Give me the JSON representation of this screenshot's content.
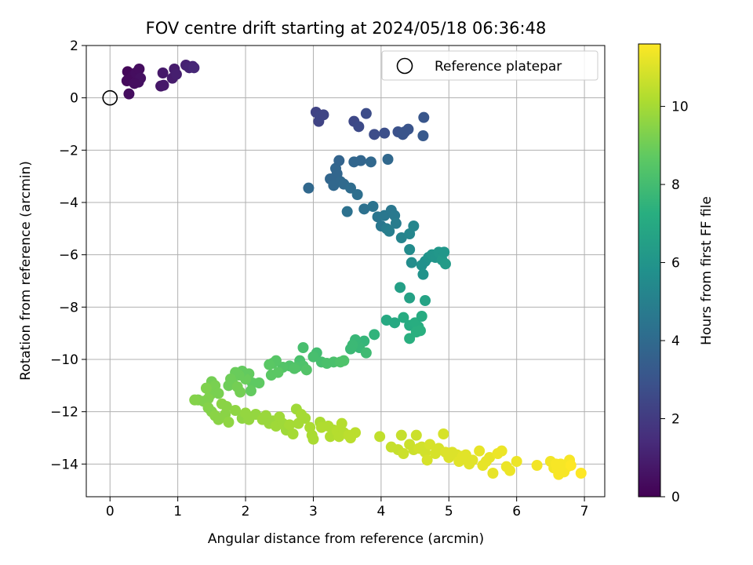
{
  "chart_data": {
    "type": "scatter",
    "title": "FOV centre drift starting at 2024/05/18 06:36:48",
    "xlabel": "Angular distance from reference (arcmin)",
    "ylabel": "Rotation from reference (arcmin)",
    "xlim": [
      -0.35,
      7.3
    ],
    "ylim": [
      -15.25,
      2.0
    ],
    "xticks": [
      0,
      1,
      2,
      3,
      4,
      5,
      6,
      7
    ],
    "xtick_labels": [
      "0",
      "1",
      "2",
      "3",
      "4",
      "5",
      "6",
      "7"
    ],
    "yticks": [
      2,
      0,
      -2,
      -4,
      -6,
      -8,
      -10,
      -12,
      -14
    ],
    "ytick_labels": [
      "2",
      "0",
      "−2",
      "−4",
      "−6",
      "−8",
      "−10",
      "−12",
      "−14"
    ],
    "grid": true,
    "legend": {
      "position": "top-right",
      "label": "Reference platepar"
    },
    "reference_point": {
      "x": 0,
      "y": 0
    },
    "colorbar": {
      "label": "Hours from first FF file",
      "colormap": "viridis",
      "range": [
        0,
        11.6
      ],
      "ticks": [
        0,
        2,
        4,
        6,
        8,
        10
      ],
      "tick_labels": [
        "0",
        "2",
        "4",
        "6",
        "8",
        "10"
      ]
    },
    "points": [
      [
        0.26,
        1.0,
        0.2
      ],
      [
        0.25,
        0.65,
        0.3
      ],
      [
        0.28,
        0.15,
        0.4
      ],
      [
        0.33,
        0.8,
        0.3
      ],
      [
        0.38,
        0.95,
        0.4
      ],
      [
        0.43,
        1.1,
        0.4
      ],
      [
        0.42,
        0.6,
        0.5
      ],
      [
        0.45,
        0.75,
        0.5
      ],
      [
        0.36,
        0.55,
        0.4
      ],
      [
        0.75,
        0.45,
        0.7
      ],
      [
        0.78,
        0.95,
        0.8
      ],
      [
        0.92,
        0.75,
        0.9
      ],
      [
        0.95,
        1.1,
        0.9
      ],
      [
        0.98,
        0.9,
        1.0
      ],
      [
        1.12,
        1.25,
        1.1
      ],
      [
        1.17,
        1.15,
        1.2
      ],
      [
        1.22,
        1.2,
        1.2
      ],
      [
        1.24,
        1.15,
        1.3
      ],
      [
        0.79,
        0.48,
        0.8
      ],
      [
        3.04,
        -0.55,
        2.3
      ],
      [
        3.08,
        -0.9,
        2.3
      ],
      [
        3.1,
        -0.7,
        2.4
      ],
      [
        3.15,
        -0.65,
        2.4
      ],
      [
        3.6,
        -0.9,
        2.5
      ],
      [
        3.67,
        -1.1,
        2.6
      ],
      [
        3.78,
        -0.6,
        2.7
      ],
      [
        3.9,
        -1.4,
        2.7
      ],
      [
        4.05,
        -1.35,
        2.8
      ],
      [
        4.25,
        -1.3,
        2.9
      ],
      [
        4.32,
        -1.4,
        3.0
      ],
      [
        4.4,
        -1.2,
        3.0
      ],
      [
        4.35,
        -1.3,
        3.0
      ],
      [
        4.63,
        -0.75,
        3.1
      ],
      [
        4.62,
        -1.45,
        3.2
      ],
      [
        2.93,
        -3.45,
        3.9
      ],
      [
        3.25,
        -3.1,
        3.8
      ],
      [
        3.3,
        -3.35,
        3.9
      ],
      [
        3.33,
        -2.7,
        3.8
      ],
      [
        3.35,
        -2.9,
        3.8
      ],
      [
        3.38,
        -2.4,
        3.7
      ],
      [
        3.4,
        -3.2,
        3.9
      ],
      [
        3.45,
        -3.3,
        4.0
      ],
      [
        3.5,
        -4.35,
        4.3
      ],
      [
        3.55,
        -3.45,
        4.1
      ],
      [
        3.6,
        -2.45,
        3.8
      ],
      [
        3.65,
        -3.7,
        4.2
      ],
      [
        3.7,
        -2.4,
        3.8
      ],
      [
        3.75,
        -4.25,
        4.3
      ],
      [
        3.85,
        -2.45,
        3.9
      ],
      [
        3.88,
        -4.15,
        4.4
      ],
      [
        3.95,
        -4.55,
        4.5
      ],
      [
        4.0,
        -4.9,
        4.6
      ],
      [
        4.05,
        -4.5,
        4.6
      ],
      [
        4.1,
        -2.35,
        3.9
      ],
      [
        4.15,
        -4.3,
        4.6
      ],
      [
        4.2,
        -4.5,
        4.7
      ],
      [
        4.08,
        -5.0,
        4.8
      ],
      [
        4.12,
        -5.1,
        4.9
      ],
      [
        4.22,
        -4.8,
        4.8
      ],
      [
        4.3,
        -5.35,
        5.2
      ],
      [
        4.42,
        -5.2,
        5.3
      ],
      [
        4.48,
        -4.9,
        5.3
      ],
      [
        4.42,
        -5.8,
        5.5
      ],
      [
        4.45,
        -6.3,
        5.6
      ],
      [
        4.6,
        -6.4,
        5.8
      ],
      [
        4.62,
        -6.75,
        5.9
      ],
      [
        4.65,
        -6.25,
        5.8
      ],
      [
        4.7,
        -6.1,
        5.9
      ],
      [
        4.75,
        -6.0,
        6.0
      ],
      [
        4.8,
        -6.1,
        6.0
      ],
      [
        4.85,
        -5.9,
        6.1
      ],
      [
        4.9,
        -6.2,
        6.2
      ],
      [
        4.95,
        -6.35,
        6.3
      ],
      [
        4.93,
        -5.9,
        6.1
      ],
      [
        4.28,
        -7.25,
        6.5
      ],
      [
        4.42,
        -7.65,
        6.6
      ],
      [
        4.65,
        -7.75,
        6.7
      ],
      [
        4.08,
        -8.5,
        7.0
      ],
      [
        4.2,
        -8.6,
        7.0
      ],
      [
        4.33,
        -8.4,
        7.1
      ],
      [
        4.42,
        -8.7,
        7.1
      ],
      [
        4.5,
        -8.6,
        7.2
      ],
      [
        4.55,
        -8.75,
        7.2
      ],
      [
        4.6,
        -8.35,
        7.1
      ],
      [
        4.42,
        -9.2,
        7.3
      ],
      [
        4.52,
        -8.95,
        7.3
      ],
      [
        4.58,
        -8.9,
        7.3
      ],
      [
        3.9,
        -9.05,
        7.5
      ],
      [
        3.75,
        -9.3,
        7.6
      ],
      [
        3.68,
        -9.55,
        7.7
      ],
      [
        3.62,
        -9.25,
        7.7
      ],
      [
        3.58,
        -9.45,
        7.8
      ],
      [
        3.55,
        -9.6,
        7.8
      ],
      [
        3.78,
        -9.75,
        7.9
      ],
      [
        3.05,
        -9.75,
        8.0
      ],
      [
        3.0,
        -9.9,
        8.1
      ],
      [
        3.12,
        -10.1,
        8.1
      ],
      [
        3.2,
        -10.15,
        8.2
      ],
      [
        3.3,
        -10.1,
        8.2
      ],
      [
        3.4,
        -10.1,
        8.3
      ],
      [
        3.45,
        -10.05,
        8.3
      ],
      [
        2.85,
        -9.55,
        8.1
      ],
      [
        2.8,
        -10.05,
        8.2
      ],
      [
        2.75,
        -10.3,
        8.3
      ],
      [
        2.65,
        -10.25,
        8.3
      ],
      [
        2.55,
        -10.3,
        8.4
      ],
      [
        2.85,
        -10.25,
        8.3
      ],
      [
        2.9,
        -10.4,
        8.4
      ],
      [
        2.72,
        -10.35,
        8.4
      ],
      [
        2.45,
        -10.05,
        8.5
      ],
      [
        2.4,
        -10.15,
        8.5
      ],
      [
        2.38,
        -10.6,
        8.6
      ],
      [
        2.35,
        -10.2,
        8.6
      ],
      [
        2.48,
        -10.5,
        8.6
      ],
      [
        2.2,
        -10.9,
        8.7
      ],
      [
        2.1,
        -10.9,
        8.7
      ],
      [
        2.08,
        -11.2,
        8.8
      ],
      [
        2.05,
        -10.55,
        8.8
      ],
      [
        2.0,
        -10.75,
        8.9
      ],
      [
        1.95,
        -10.45,
        8.8
      ],
      [
        1.9,
        -10.6,
        8.9
      ],
      [
        1.85,
        -10.5,
        8.9
      ],
      [
        1.82,
        -10.95,
        9.0
      ],
      [
        1.78,
        -10.75,
        9.0
      ],
      [
        1.75,
        -11.0,
        9.0
      ],
      [
        1.88,
        -11.05,
        9.1
      ],
      [
        1.92,
        -11.25,
        9.1
      ],
      [
        1.5,
        -10.85,
        9.1
      ],
      [
        1.55,
        -11.0,
        9.2
      ],
      [
        1.6,
        -11.3,
        9.2
      ],
      [
        1.48,
        -11.35,
        9.2
      ],
      [
        1.45,
        -11.5,
        9.3
      ],
      [
        1.42,
        -11.1,
        9.3
      ],
      [
        1.38,
        -11.6,
        9.3
      ],
      [
        1.3,
        -11.55,
        9.3
      ],
      [
        1.25,
        -11.55,
        9.4
      ],
      [
        1.45,
        -11.85,
        9.4
      ],
      [
        1.5,
        -12.0,
        9.4
      ],
      [
        1.55,
        -12.15,
        9.5
      ],
      [
        1.6,
        -12.3,
        9.5
      ],
      [
        1.65,
        -11.7,
        9.5
      ],
      [
        1.7,
        -12.1,
        9.5
      ],
      [
        1.75,
        -12.4,
        9.6
      ],
      [
        1.72,
        -11.8,
        9.5
      ],
      [
        1.85,
        -11.95,
        9.6
      ],
      [
        1.95,
        -12.25,
        9.6
      ],
      [
        2.0,
        -12.05,
        9.7
      ],
      [
        2.05,
        -12.3,
        9.7
      ],
      [
        2.15,
        -12.1,
        9.7
      ],
      [
        2.25,
        -12.3,
        9.8
      ],
      [
        2.3,
        -12.15,
        9.8
      ],
      [
        2.35,
        -12.45,
        9.8
      ],
      [
        2.4,
        -12.35,
        9.8
      ],
      [
        2.45,
        -12.55,
        9.9
      ],
      [
        2.5,
        -12.2,
        9.9
      ],
      [
        2.55,
        -12.45,
        9.9
      ],
      [
        2.6,
        -12.7,
        9.9
      ],
      [
        2.65,
        -12.5,
        10.0
      ],
      [
        2.7,
        -12.85,
        10.0
      ],
      [
        2.75,
        -11.9,
        9.9
      ],
      [
        2.78,
        -12.45,
        10.0
      ],
      [
        2.82,
        -12.1,
        10.0
      ],
      [
        2.88,
        -12.25,
        10.0
      ],
      [
        2.95,
        -12.6,
        10.1
      ],
      [
        2.98,
        -12.9,
        10.1
      ],
      [
        3.0,
        -13.05,
        10.1
      ],
      [
        3.1,
        -12.4,
        10.1
      ],
      [
        3.12,
        -12.6,
        10.2
      ],
      [
        3.22,
        -12.55,
        10.2
      ],
      [
        3.25,
        -12.95,
        10.2
      ],
      [
        3.3,
        -12.7,
        10.2
      ],
      [
        3.35,
        -12.75,
        10.3
      ],
      [
        3.38,
        -12.95,
        10.3
      ],
      [
        3.42,
        -12.45,
        10.3
      ],
      [
        3.45,
        -12.8,
        10.3
      ],
      [
        3.52,
        -12.9,
        10.4
      ],
      [
        3.62,
        -12.8,
        10.4
      ],
      [
        3.55,
        -13.0,
        10.4
      ],
      [
        3.98,
        -12.95,
        10.5
      ],
      [
        4.15,
        -13.35,
        10.6
      ],
      [
        4.25,
        -13.45,
        10.6
      ],
      [
        4.3,
        -12.9,
        10.6
      ],
      [
        4.33,
        -13.6,
        10.7
      ],
      [
        4.42,
        -13.25,
        10.7
      ],
      [
        4.48,
        -13.45,
        10.7
      ],
      [
        4.52,
        -12.9,
        10.7
      ],
      [
        4.56,
        -13.4,
        10.8
      ],
      [
        4.6,
        -13.35,
        10.8
      ],
      [
        4.65,
        -13.55,
        10.8
      ],
      [
        4.68,
        -13.85,
        10.9
      ],
      [
        4.72,
        -13.25,
        10.9
      ],
      [
        4.8,
        -13.6,
        10.9
      ],
      [
        4.85,
        -13.4,
        10.9
      ],
      [
        4.92,
        -12.85,
        10.9
      ],
      [
        4.95,
        -13.55,
        11.0
      ],
      [
        5.0,
        -13.75,
        11.0
      ],
      [
        5.05,
        -13.55,
        11.0
      ],
      [
        5.12,
        -13.65,
        11.0
      ],
      [
        5.15,
        -13.9,
        11.1
      ],
      [
        5.2,
        -13.7,
        11.1
      ],
      [
        5.25,
        -13.65,
        11.1
      ],
      [
        5.3,
        -14.0,
        11.1
      ],
      [
        5.35,
        -13.85,
        11.1
      ],
      [
        5.45,
        -13.5,
        11.2
      ],
      [
        5.5,
        -14.05,
        11.2
      ],
      [
        5.55,
        -13.9,
        11.2
      ],
      [
        5.6,
        -13.75,
        11.2
      ],
      [
        5.65,
        -14.35,
        11.2
      ],
      [
        5.72,
        -13.6,
        11.3
      ],
      [
        5.78,
        -13.5,
        11.3
      ],
      [
        5.85,
        -14.1,
        11.3
      ],
      [
        5.9,
        -14.25,
        11.3
      ],
      [
        6.0,
        -13.9,
        11.3
      ],
      [
        6.3,
        -14.05,
        11.4
      ],
      [
        6.5,
        -13.9,
        11.4
      ],
      [
        6.55,
        -14.15,
        11.4
      ],
      [
        6.6,
        -14.2,
        11.5
      ],
      [
        6.62,
        -14.4,
        11.5
      ],
      [
        6.65,
        -14.0,
        11.5
      ],
      [
        6.7,
        -14.3,
        11.5
      ],
      [
        6.75,
        -14.1,
        11.5
      ],
      [
        6.78,
        -13.85,
        11.5
      ],
      [
        6.8,
        -14.05,
        11.6
      ],
      [
        6.95,
        -14.35,
        11.6
      ],
      [
        6.58,
        -14.0,
        11.5
      ]
    ]
  }
}
